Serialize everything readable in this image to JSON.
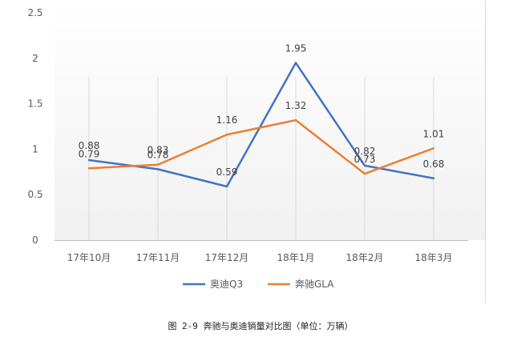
{
  "chart_data": {
    "type": "line",
    "categories": [
      "17年10月",
      "17年11月",
      "17年12月",
      "18年1月",
      "18年2月",
      "18年3月"
    ],
    "series": [
      {
        "name": "奥迪Q3",
        "values": [
          0.88,
          0.78,
          0.59,
          1.95,
          0.82,
          0.68
        ],
        "color": "#4472C4"
      },
      {
        "name": "奔驰GLA",
        "values": [
          0.79,
          0.83,
          1.16,
          1.32,
          0.73,
          1.01
        ],
        "color": "#ED7D31"
      }
    ],
    "ylim": [
      0,
      2.5
    ],
    "yticks": [
      "0",
      "0.5",
      "1",
      "1.5",
      "2",
      "2.5"
    ],
    "grid": "vertical",
    "legend": "bottom",
    "caption": "图 2-9 奔驰与奥迪销量对比图（单位：万辆）"
  }
}
